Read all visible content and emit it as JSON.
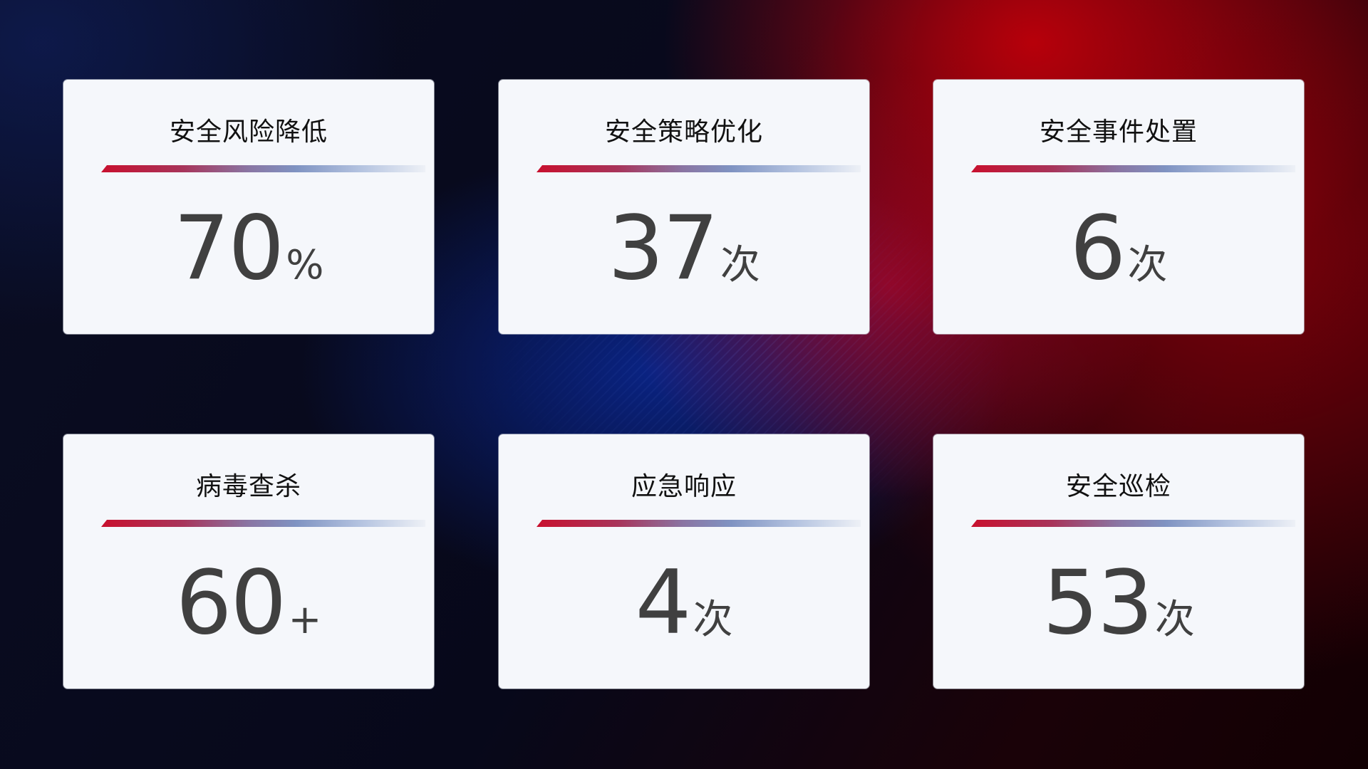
{
  "cards": [
    {
      "title": "安全风险降低",
      "value": "70",
      "unit": "%"
    },
    {
      "title": "安全策略优化",
      "value": "37",
      "unit": "次"
    },
    {
      "title": "安全事件处置",
      "value": "6",
      "unit": "次"
    },
    {
      "title": "病毒查杀",
      "value": "60",
      "unit": "+"
    },
    {
      "title": "应急响应",
      "value": "4",
      "unit": "次"
    },
    {
      "title": "安全巡检",
      "value": "53",
      "unit": "次"
    }
  ],
  "colors": {
    "accent_red": "#c8102e",
    "accent_blue": "#7f93c2",
    "card_bg": "#f5f7fb",
    "value_text": "#404040"
  }
}
